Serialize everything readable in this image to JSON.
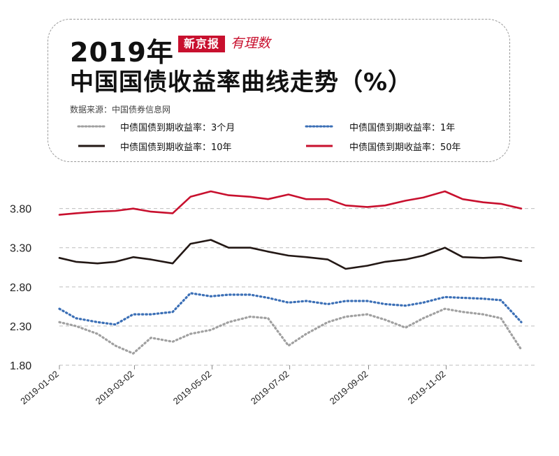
{
  "header": {
    "title_year": "2019年",
    "brand_name": "新京报",
    "brand_sub": "有理数",
    "title_main": "中国国债收益率曲线走势（%）",
    "source": "数据来源：中国债券信息网"
  },
  "legend": [
    {
      "label": "中债国债到期收益率：3个月",
      "color": "#a0a0a0",
      "style": "dotted"
    },
    {
      "label": "中债国债到期收益率：1年",
      "color": "#3b6fb6",
      "style": "dotted"
    },
    {
      "label": "中债国债到期收益率：10年",
      "color": "#231815",
      "style": "solid"
    },
    {
      "label": "中债国债到期收益率：50年",
      "color": "#c8102e",
      "style": "solid"
    }
  ],
  "chart_data": {
    "type": "line",
    "title": "中国国债收益率曲线走势（%）",
    "xlabel": "",
    "ylabel": "",
    "x_ticks": [
      "2019-01-02",
      "2019-03-02",
      "2019-05-02",
      "2019-07-02",
      "2019-09-02",
      "2019-11-02"
    ],
    "y_ticks": [
      "1.80",
      "2.30",
      "2.80",
      "3.30",
      "3.80"
    ],
    "ylim": [
      1.8,
      4.1
    ],
    "xlim": [
      "2019-01-02",
      "2019-12-31"
    ],
    "grid": "horizontal-dashed",
    "x": [
      "2019-01-02",
      "2019-01-15",
      "2019-02-01",
      "2019-02-15",
      "2019-03-01",
      "2019-03-15",
      "2019-04-01",
      "2019-04-15",
      "2019-05-01",
      "2019-05-15",
      "2019-06-01",
      "2019-06-15",
      "2019-07-01",
      "2019-07-15",
      "2019-08-01",
      "2019-08-15",
      "2019-09-01",
      "2019-09-15",
      "2019-10-01",
      "2019-10-15",
      "2019-11-01",
      "2019-11-15",
      "2019-12-01",
      "2019-12-15",
      "2019-12-31"
    ],
    "series": [
      {
        "name": "中债国债到期收益率：3个月",
        "color": "#a0a0a0",
        "style": "dotted",
        "values": [
          2.35,
          2.3,
          2.2,
          2.05,
          1.95,
          2.15,
          2.1,
          2.2,
          2.25,
          2.35,
          2.42,
          2.4,
          2.05,
          2.2,
          2.35,
          2.42,
          2.45,
          2.38,
          2.28,
          2.4,
          2.52,
          2.48,
          2.45,
          2.4,
          2.0
        ]
      },
      {
        "name": "中债国债到期收益率：1年",
        "color": "#3b6fb6",
        "style": "dotted",
        "values": [
          2.52,
          2.4,
          2.35,
          2.32,
          2.45,
          2.45,
          2.48,
          2.72,
          2.68,
          2.7,
          2.7,
          2.66,
          2.6,
          2.62,
          2.58,
          2.62,
          2.62,
          2.58,
          2.56,
          2.6,
          2.67,
          2.66,
          2.65,
          2.63,
          2.35
        ]
      },
      {
        "name": "中债国债到期收益率：10年",
        "color": "#231815",
        "style": "solid",
        "values": [
          3.17,
          3.12,
          3.1,
          3.12,
          3.18,
          3.15,
          3.1,
          3.35,
          3.4,
          3.3,
          3.3,
          3.25,
          3.2,
          3.18,
          3.15,
          3.03,
          3.07,
          3.12,
          3.15,
          3.2,
          3.3,
          3.18,
          3.17,
          3.18,
          3.13
        ]
      },
      {
        "name": "中债国债到期收益率：50年",
        "color": "#c8102e",
        "style": "solid",
        "values": [
          3.72,
          3.74,
          3.76,
          3.77,
          3.8,
          3.76,
          3.74,
          3.95,
          4.02,
          3.97,
          3.95,
          3.92,
          3.98,
          3.92,
          3.92,
          3.84,
          3.82,
          3.84,
          3.9,
          3.94,
          4.02,
          3.92,
          3.88,
          3.86,
          3.8
        ]
      }
    ]
  }
}
